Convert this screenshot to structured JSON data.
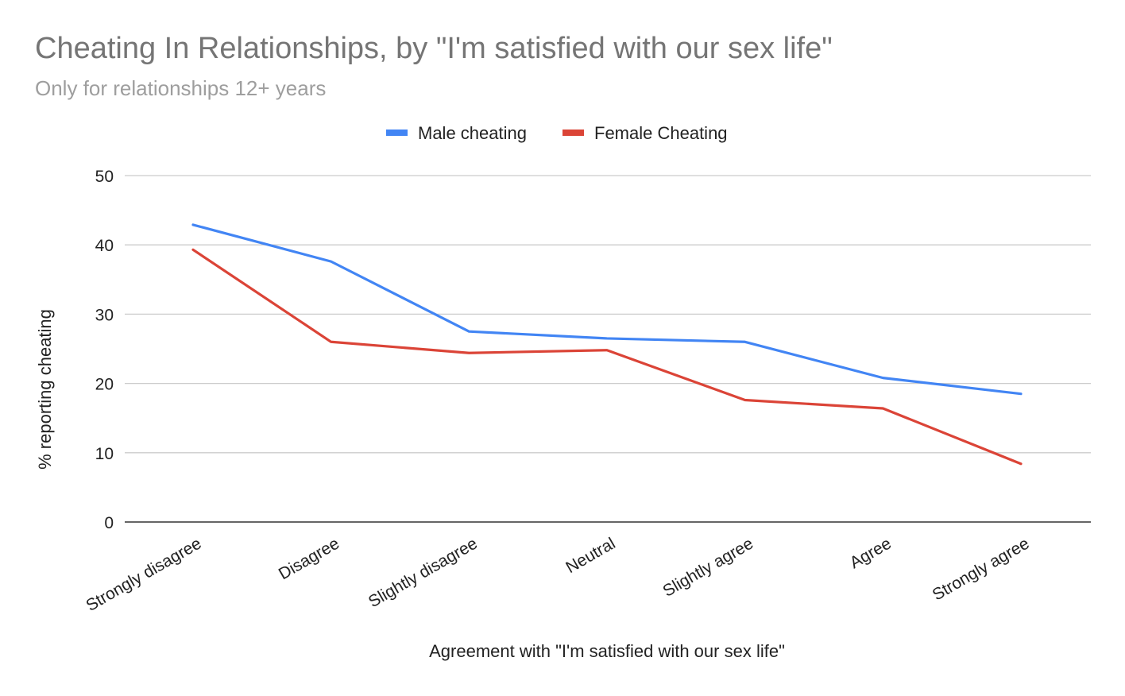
{
  "chart_data": {
    "type": "line",
    "title": "Cheating In Relationships, by \"I'm satisfied with our sex life\"",
    "subtitle": "Only for relationships 12+ years",
    "xlabel": "Agreement with \"I'm satisfied with our sex life\"",
    "ylabel": "% reporting cheating",
    "categories": [
      "Strongly disagree",
      "Disagree",
      "Slightly disagree",
      "Neutral",
      "Slightly agree",
      "Agree",
      "Strongly agree"
    ],
    "series": [
      {
        "name": "Male cheating",
        "color": "#4285f4",
        "values": [
          42.9,
          37.6,
          27.5,
          26.5,
          26.0,
          20.8,
          18.5
        ]
      },
      {
        "name": "Female Cheating",
        "color": "#db4437",
        "values": [
          39.3,
          26.0,
          24.4,
          24.8,
          17.6,
          16.4,
          8.4
        ]
      }
    ],
    "ylim": [
      0,
      50
    ],
    "yticks": [
      0,
      10,
      20,
      30,
      40,
      50
    ],
    "grid": true,
    "legend_position": "top-center"
  }
}
